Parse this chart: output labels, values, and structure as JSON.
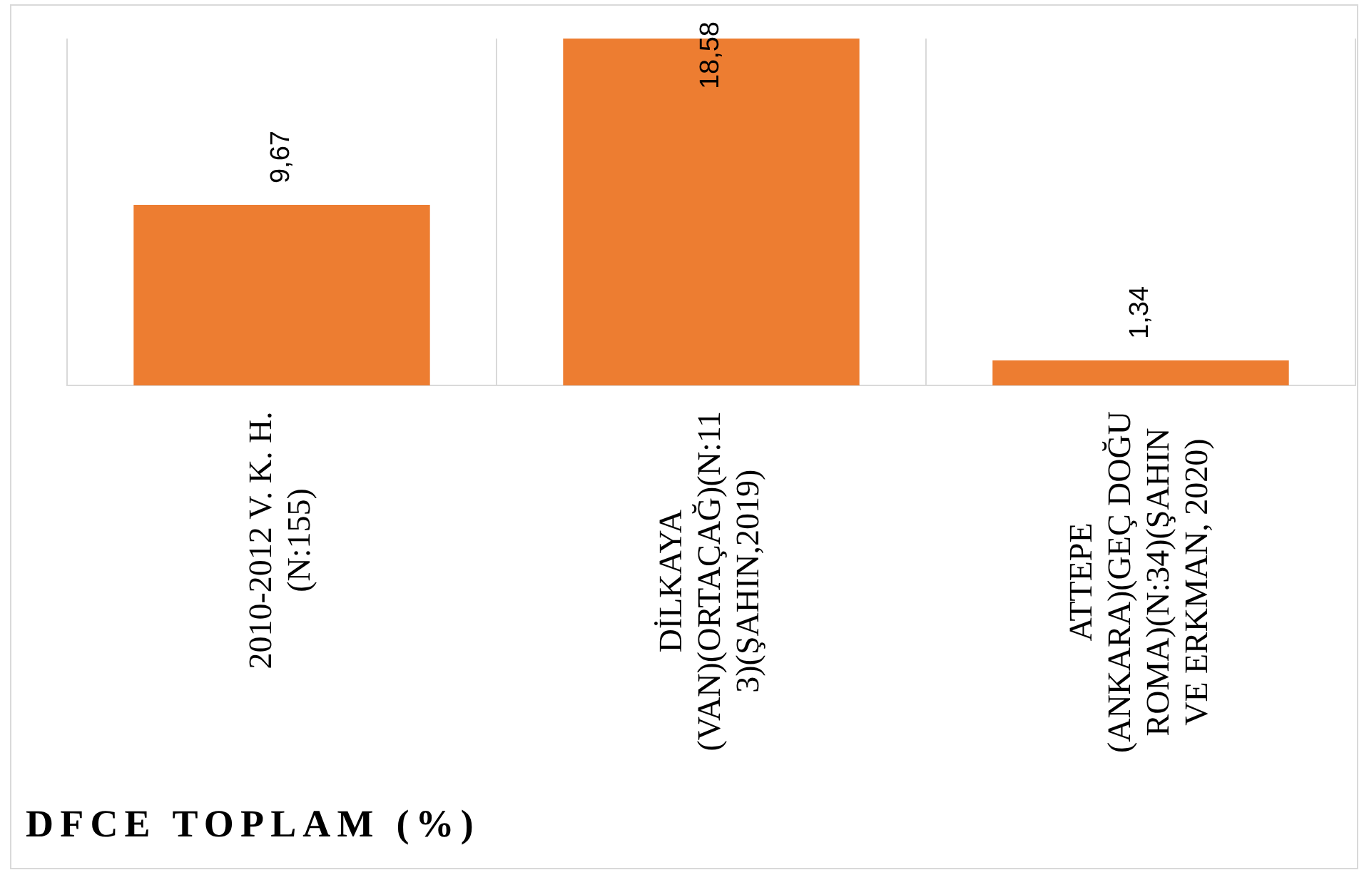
{
  "chart_data": {
    "type": "bar",
    "title": "DFCE TOPLAM (%)",
    "categories": [
      "2010-2012 V. K. H. (N:155)",
      "DİLKAYA (VAN)(ORTAÇAĞ)(N:113)(ŞAHIN,2019)",
      "ATTEPE (ANKARA)(GEÇ DOĞU ROMA)(N:34)(ŞAHIN VE ERKMAN, 2020)"
    ],
    "values": [
      9.67,
      18.58,
      1.34
    ],
    "value_labels": [
      "9,67",
      "18,58",
      "1,34"
    ],
    "color": "#ed7d31",
    "grid": "x",
    "tick_labels": "x"
  }
}
